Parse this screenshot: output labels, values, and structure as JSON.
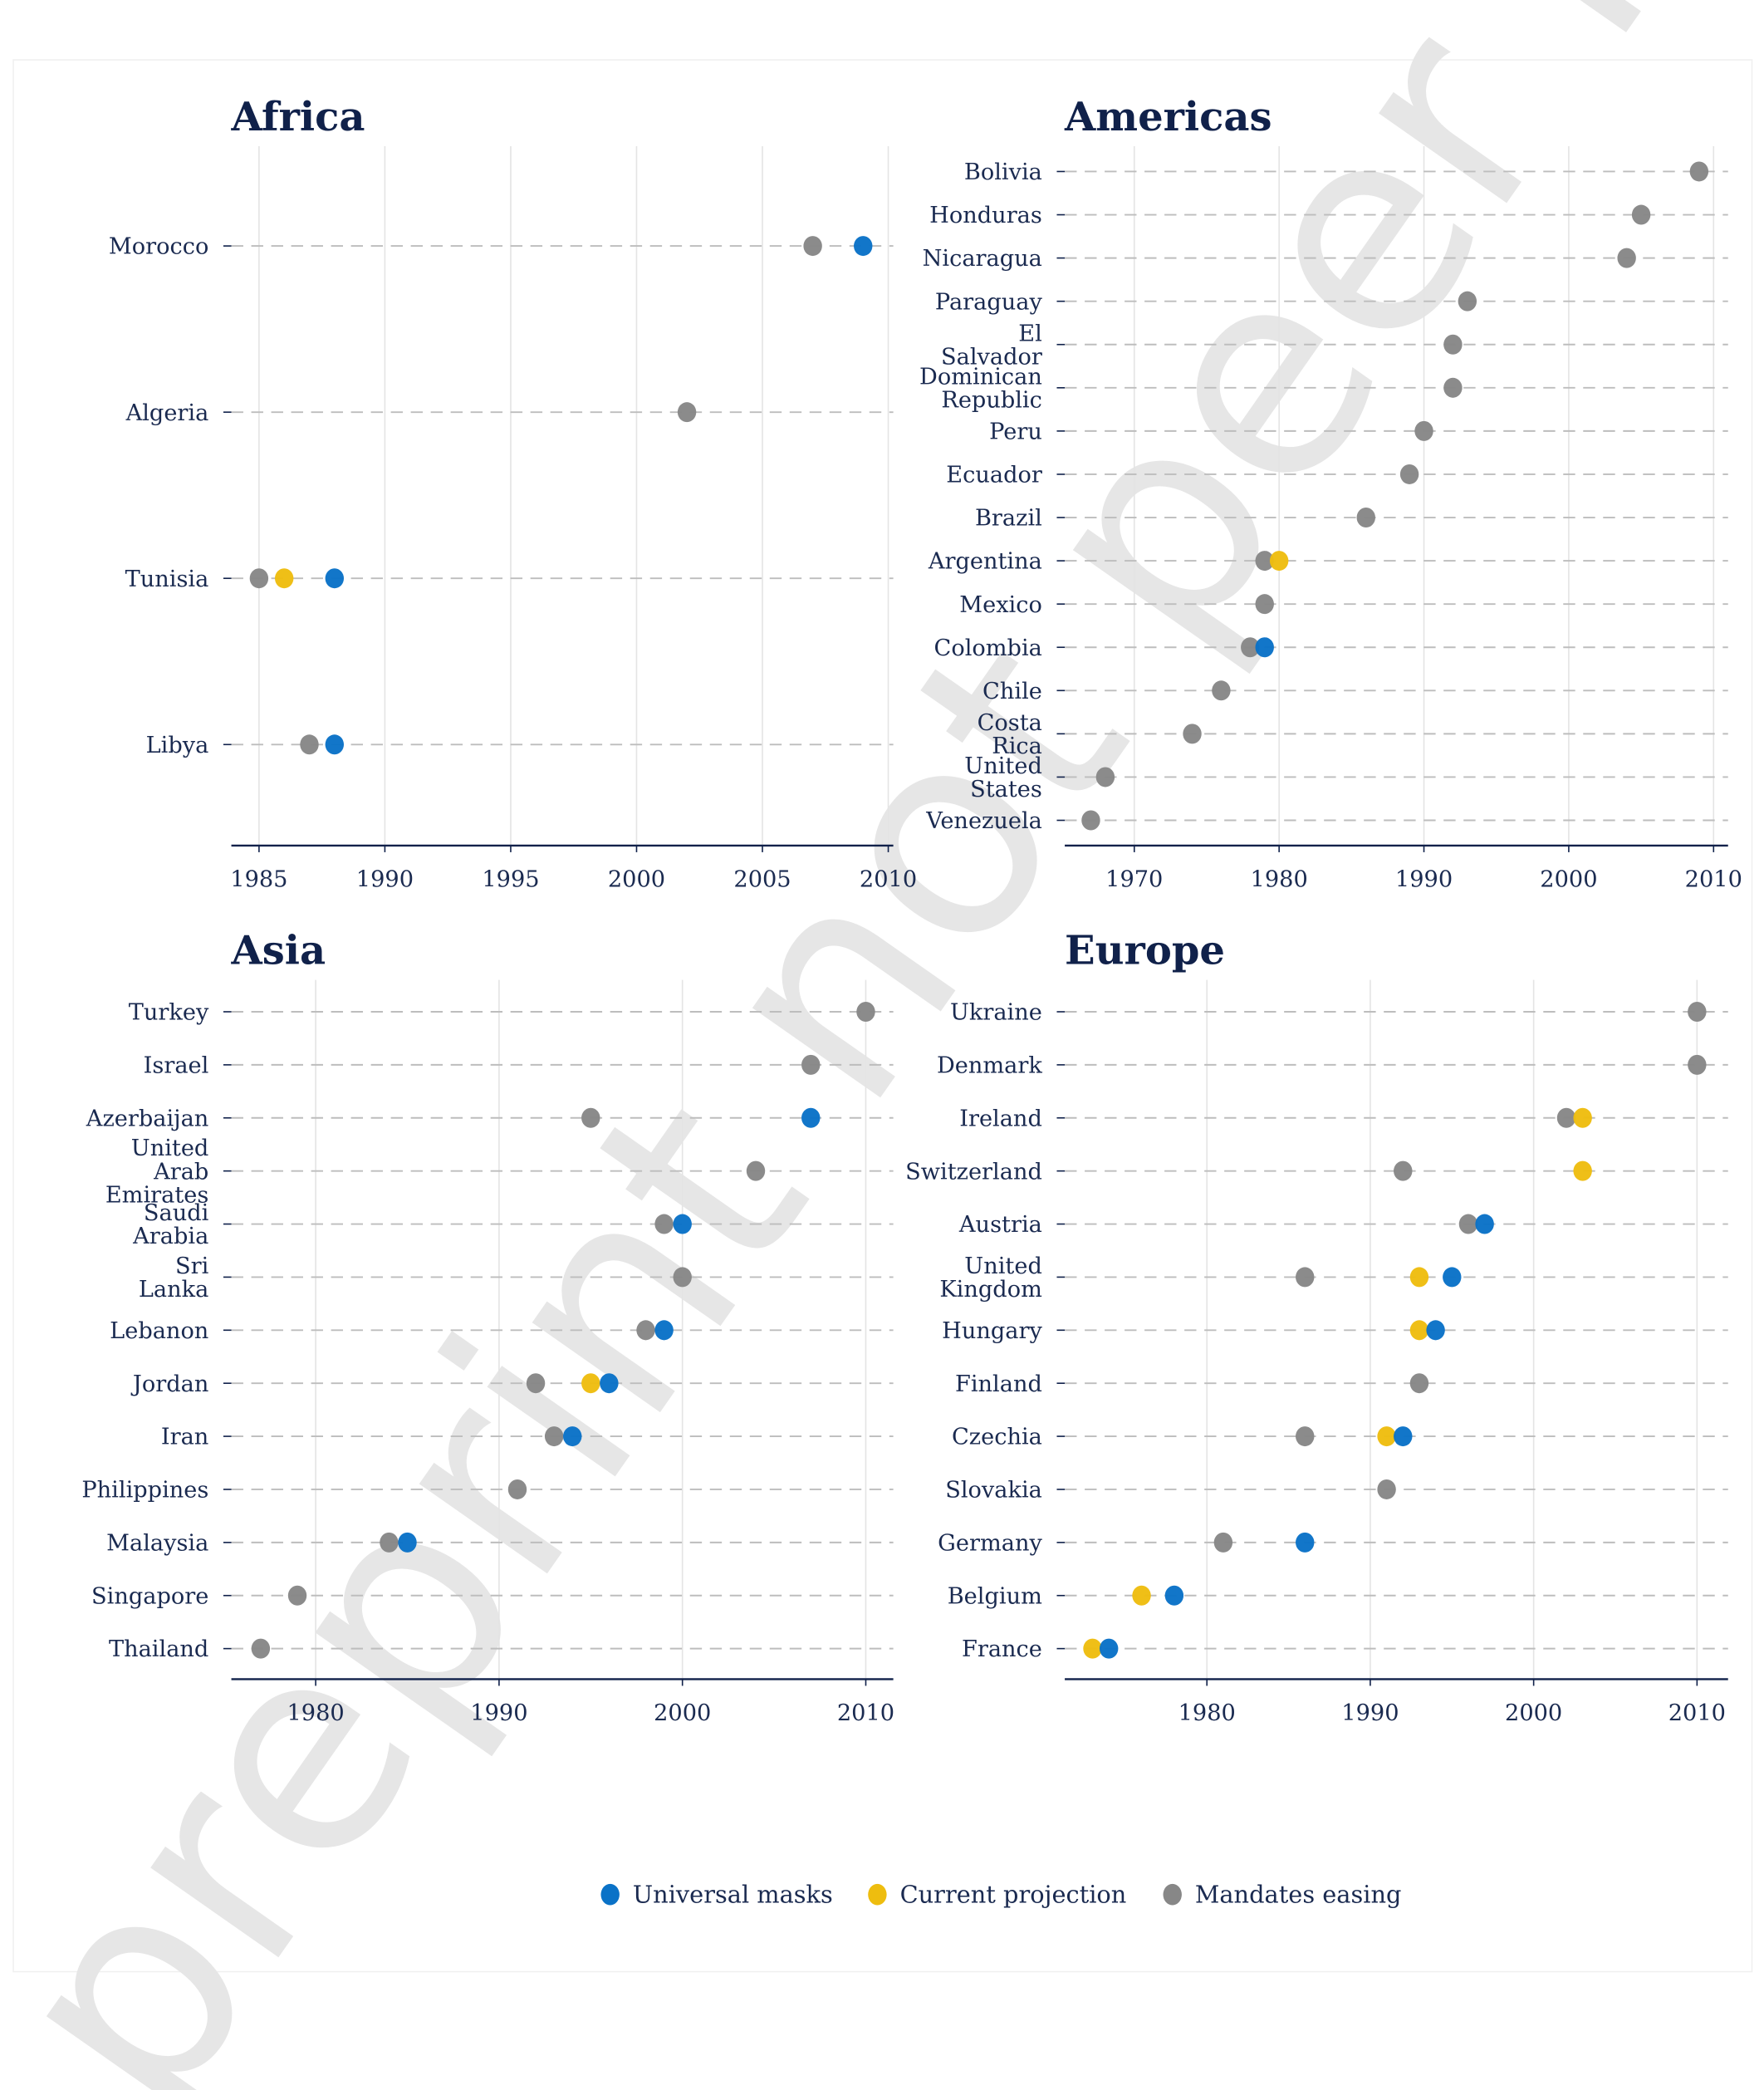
{
  "watermark": "preprint not peer reviewed",
  "colors": {
    "Universal masks": "#0a72c7",
    "Current projection": "#eebd0f",
    "Mandates easing": "#878787",
    "axis": "#10214a"
  },
  "legend": [
    {
      "label": "Universal masks",
      "series": "Universal masks"
    },
    {
      "label": "Current projection",
      "series": "Current projection"
    },
    {
      "label": "Mandates easing",
      "series": "Mandates easing"
    }
  ],
  "chart_data": [
    {
      "type": "scatter",
      "title": "Africa",
      "xlim": [
        1983.9,
        2010.2
      ],
      "xticks": [
        1985,
        1990,
        1995,
        2000,
        2005,
        2010
      ],
      "grid": "vertical",
      "rows": [
        {
          "label": "Morocco",
          "points": {
            "Mandates easing": 2007,
            "Universal masks": 2009
          }
        },
        {
          "label": "Algeria",
          "points": {
            "Mandates easing": 2002
          }
        },
        {
          "label": "Tunisia",
          "points": {
            "Mandates easing": 1985,
            "Current projection": 1986,
            "Universal masks": 1988
          }
        },
        {
          "label": "Libya",
          "points": {
            "Mandates easing": 1987,
            "Universal masks": 1988
          }
        }
      ]
    },
    {
      "type": "scatter",
      "title": "Americas",
      "xlim": [
        1965.2,
        2011
      ],
      "xticks": [
        1970,
        1980,
        1990,
        2000,
        2010
      ],
      "grid": "vertical",
      "rows": [
        {
          "label": "Bolivia",
          "points": {
            "Mandates easing": 2009
          }
        },
        {
          "label": "Honduras",
          "points": {
            "Mandates easing": 2005
          }
        },
        {
          "label": "Nicaragua",
          "points": {
            "Mandates easing": 2004
          }
        },
        {
          "label": "Paraguay",
          "points": {
            "Mandates easing": 1993
          }
        },
        {
          "label": "El Salvador",
          "points": {
            "Mandates easing": 1992
          }
        },
        {
          "label": "Dominican Republic",
          "points": {
            "Mandates easing": 1992
          }
        },
        {
          "label": "Peru",
          "points": {
            "Mandates easing": 1990
          }
        },
        {
          "label": "Ecuador",
          "points": {
            "Mandates easing": 1989
          }
        },
        {
          "label": "Brazil",
          "points": {
            "Mandates easing": 1986
          }
        },
        {
          "label": "Argentina",
          "points": {
            "Mandates easing": 1979,
            "Current projection": 1980
          }
        },
        {
          "label": "Mexico",
          "points": {
            "Mandates easing": 1979
          }
        },
        {
          "label": "Colombia",
          "points": {
            "Mandates easing": 1978,
            "Universal masks": 1979
          }
        },
        {
          "label": "Chile",
          "points": {
            "Mandates easing": 1976
          }
        },
        {
          "label": "Costa Rica",
          "points": {
            "Mandates easing": 1974
          }
        },
        {
          "label": "United States",
          "points": {
            "Mandates easing": 1968
          }
        },
        {
          "label": "Venezuela",
          "points": {
            "Mandates easing": 1967
          }
        }
      ]
    },
    {
      "type": "scatter",
      "title": "Asia",
      "xlim": [
        1975.4,
        2011.5
      ],
      "xticks": [
        1980,
        1990,
        2000,
        2010
      ],
      "grid": "vertical",
      "rows": [
        {
          "label": "Turkey",
          "points": {
            "Mandates easing": 2010
          }
        },
        {
          "label": "Israel",
          "points": {
            "Mandates easing": 2007
          }
        },
        {
          "label": "Azerbaijan",
          "points": {
            "Mandates easing": 1995,
            "Universal masks": 2007
          }
        },
        {
          "label": "United Arab Emirates",
          "points": {
            "Mandates easing": 2004
          }
        },
        {
          "label": "Saudi Arabia",
          "points": {
            "Mandates easing": 1999,
            "Universal masks": 2000
          }
        },
        {
          "label": "Sri Lanka",
          "points": {
            "Mandates easing": 2000
          }
        },
        {
          "label": "Lebanon",
          "points": {
            "Mandates easing": 1998,
            "Universal masks": 1999
          }
        },
        {
          "label": "Jordan",
          "points": {
            "Mandates easing": 1992,
            "Current projection": 1995,
            "Universal masks": 1996
          }
        },
        {
          "label": "Iran",
          "points": {
            "Mandates easing": 1993,
            "Universal masks": 1994
          }
        },
        {
          "label": "Philippines",
          "points": {
            "Mandates easing": 1991
          }
        },
        {
          "label": "Malaysia",
          "points": {
            "Mandates easing": 1984,
            "Universal masks": 1985
          }
        },
        {
          "label": "Singapore",
          "points": {
            "Mandates easing": 1979
          }
        },
        {
          "label": "Thailand",
          "points": {
            "Mandates easing": 1977
          }
        }
      ]
    },
    {
      "type": "scatter",
      "title": "Europe",
      "xlim": [
        1971.3,
        2011.9
      ],
      "xticks": [
        1980,
        1990,
        2000,
        2010
      ],
      "grid": "vertical",
      "rows": [
        {
          "label": "Ukraine",
          "points": {
            "Mandates easing": 2010
          }
        },
        {
          "label": "Denmark",
          "points": {
            "Mandates easing": 2010
          }
        },
        {
          "label": "Ireland",
          "points": {
            "Mandates easing": 2002,
            "Current projection": 2003
          }
        },
        {
          "label": "Switzerland",
          "points": {
            "Mandates easing": 1992,
            "Current projection": 2003
          }
        },
        {
          "label": "Austria",
          "points": {
            "Mandates easing": 1996,
            "Universal masks": 1997
          }
        },
        {
          "label": "United Kingdom",
          "points": {
            "Mandates easing": 1986,
            "Current projection": 1993,
            "Universal masks": 1995
          }
        },
        {
          "label": "Hungary",
          "points": {
            "Current projection": 1993,
            "Universal masks": 1994
          }
        },
        {
          "label": "Finland",
          "points": {
            "Mandates easing": 1993
          }
        },
        {
          "label": "Czechia",
          "points": {
            "Mandates easing": 1986,
            "Current projection": 1991,
            "Universal masks": 1992
          }
        },
        {
          "label": "Slovakia",
          "points": {
            "Mandates easing": 1991
          }
        },
        {
          "label": "Germany",
          "points": {
            "Mandates easing": 1981,
            "Universal masks": 1986
          }
        },
        {
          "label": "Belgium",
          "points": {
            "Current projection": 1976,
            "Universal masks": 1978
          }
        },
        {
          "label": "France",
          "points": {
            "Current projection": 1973,
            "Universal masks": 1974
          }
        }
      ]
    }
  ]
}
